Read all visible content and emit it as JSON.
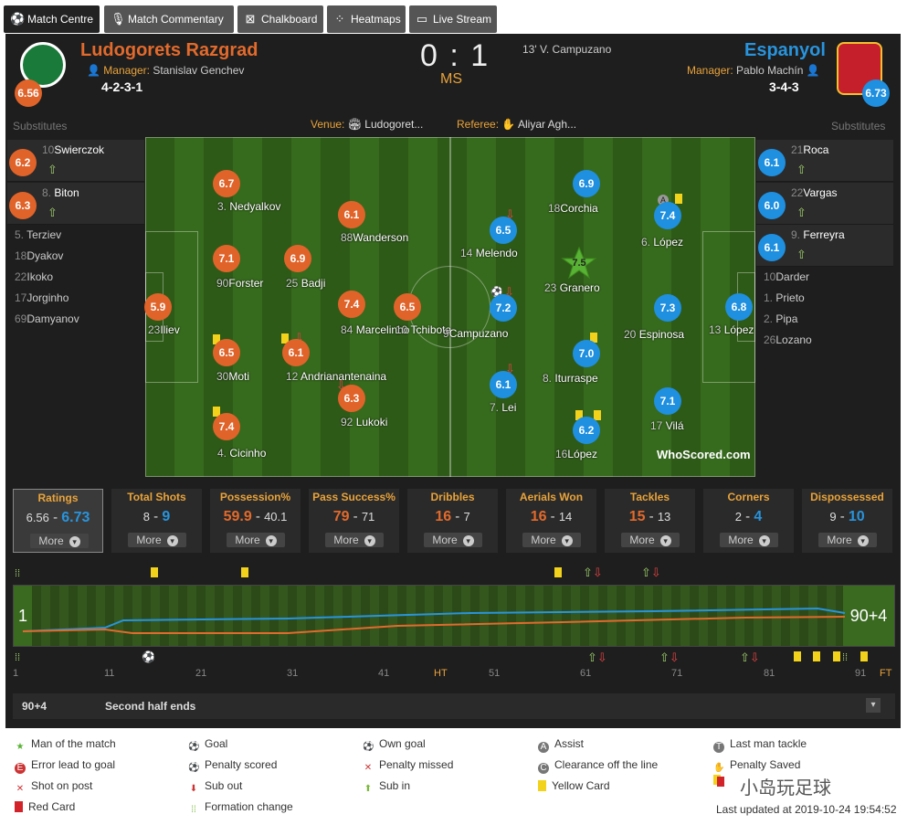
{
  "tabs": [
    {
      "label": "Match Centre",
      "icon": "soccer-ball-icon"
    },
    {
      "label": "Match Commentary",
      "icon": "microphone-icon"
    },
    {
      "label": "Chalkboard",
      "icon": "chalkboard-icon"
    },
    {
      "label": "Heatmaps",
      "icon": "heatmap-icon"
    },
    {
      "label": "Live Stream",
      "icon": "monitor-icon"
    }
  ],
  "home": {
    "name": "Ludogorets Razgrad",
    "manager_label": "Manager:",
    "manager": "Stanislav Genchev",
    "formation": "4-2-3-1",
    "rating": "6.56",
    "color": "#e26a2c"
  },
  "away": {
    "name": "Espanyol",
    "manager_label": "Manager:",
    "manager": "Pablo Machín",
    "formation": "3-4-3",
    "rating": "6.73",
    "color": "#2894dd"
  },
  "score": {
    "home": "0",
    "sep": ":",
    "away": "1",
    "status": "MS"
  },
  "goal_event": "13' V. Campuzano",
  "venue_label": "Venue:",
  "venue": "Ludogoret...",
  "referee_label": "Referee:",
  "referee": "Aliyar Agh...",
  "substitutes_label": "Substitutes",
  "home_subs": [
    {
      "num": "10",
      "name": "Swierczok",
      "rating": "6.2",
      "sub_in": true
    },
    {
      "num": "8.",
      "name": "Biton",
      "rating": "6.3",
      "sub_in": true
    },
    {
      "num": "5.",
      "name": "Terziev"
    },
    {
      "num": "18",
      "name": "Dyakov"
    },
    {
      "num": "22",
      "name": "Ikoko"
    },
    {
      "num": "17",
      "name": "Jorginho"
    },
    {
      "num": "69",
      "name": "Damyanov"
    }
  ],
  "away_subs": [
    {
      "num": "21",
      "name": "Roca",
      "rating": "6.1",
      "sub_in": true
    },
    {
      "num": "22",
      "name": "Vargas",
      "rating": "6.0",
      "sub_in": true
    },
    {
      "num": "9.",
      "name": "Ferreyra",
      "rating": "6.1",
      "sub_in": true
    },
    {
      "num": "10",
      "name": "Darder"
    },
    {
      "num": "1.",
      "name": "Prieto"
    },
    {
      "num": "2.",
      "name": "Pipa"
    },
    {
      "num": "26",
      "name": "Lozano"
    }
  ],
  "home_players": [
    {
      "num": "23",
      "name": "Iliev",
      "rating": "5.9"
    },
    {
      "num": "3.",
      "name": "Nedyalkov",
      "rating": "6.7"
    },
    {
      "num": "90",
      "name": "Forster",
      "rating": "7.1"
    },
    {
      "num": "30",
      "name": "Moti",
      "rating": "6.5"
    },
    {
      "num": "4.",
      "name": "Cicinho",
      "rating": "7.4"
    },
    {
      "num": "25",
      "name": "Badji",
      "rating": "6.9"
    },
    {
      "num": "12",
      "name": "Andrianantenaina",
      "rating": "6.1"
    },
    {
      "num": "88",
      "name": "Wanderson",
      "rating": "6.1"
    },
    {
      "num": "84",
      "name": "Marcelinho",
      "rating": "7.4"
    },
    {
      "num": "92",
      "name": "Lukoki",
      "rating": "6.3"
    },
    {
      "num": "10",
      "name": "Tchibota",
      "rating": "6.5"
    }
  ],
  "away_players": [
    {
      "num": "13",
      "name": "López",
      "rating": "6.8"
    },
    {
      "num": "6.",
      "name": "López",
      "rating": "7.4"
    },
    {
      "num": "20",
      "name": "Espinosa",
      "rating": "7.3"
    },
    {
      "num": "17",
      "name": "Vilá",
      "rating": "7.1"
    },
    {
      "num": "18",
      "name": "Corchia",
      "rating": "6.9"
    },
    {
      "num": "23",
      "name": "Granero",
      "rating": "7.5",
      "motm": true
    },
    {
      "num": "8.",
      "name": "Iturraspe",
      "rating": "7.0"
    },
    {
      "num": "16",
      "name": "López",
      "rating": "6.2"
    },
    {
      "num": "14",
      "name": "Melendo",
      "rating": "6.5"
    },
    {
      "num": "9",
      "name": "Campuzano",
      "rating": "7.2"
    },
    {
      "num": "7.",
      "name": "Lei",
      "rating": "6.1"
    }
  ],
  "assist_marker": "A",
  "watermark": "WhoScored.com",
  "stats": [
    {
      "title": "Ratings",
      "home": "6.56",
      "away": "6.73",
      "more": "More"
    },
    {
      "title": "Total Shots",
      "home": "8",
      "away": "9",
      "more": "More"
    },
    {
      "title": "Possession%",
      "home": "59.9",
      "away": "40.1",
      "more": "More"
    },
    {
      "title": "Pass Success%",
      "home": "79",
      "away": "71",
      "more": "More"
    },
    {
      "title": "Dribbles",
      "home": "16",
      "away": "7",
      "more": "More"
    },
    {
      "title": "Aerials Won",
      "home": "16",
      "away": "14",
      "more": "More"
    },
    {
      "title": "Tackles",
      "home": "15",
      "away": "13",
      "more": "More"
    },
    {
      "title": "Corners",
      "home": "2",
      "away": "4",
      "more": "More"
    },
    {
      "title": "Dispossessed",
      "home": "9",
      "away": "10",
      "more": "More"
    }
  ],
  "timeline": {
    "start_label": "1",
    "end_label": "90+4",
    "ticks": [
      "1",
      "11",
      "21",
      "31",
      "41",
      "HT",
      "51",
      "61",
      "71",
      "81",
      "91",
      "FT"
    ]
  },
  "event_bar": {
    "minute": "90+4",
    "text": "Second half ends"
  },
  "legend": [
    {
      "label": "Man of the match",
      "icon": "star-icon"
    },
    {
      "label": "Goal",
      "icon": "goal-icon"
    },
    {
      "label": "Own goal",
      "icon": "own-goal-icon"
    },
    {
      "label": "Assist",
      "icon": "assist-icon"
    },
    {
      "label": "Last man tackle",
      "icon": "last-man-tackle-icon"
    },
    {
      "label": "Error lead to goal",
      "icon": "error-icon"
    },
    {
      "label": "Penalty scored",
      "icon": "penalty-scored-icon"
    },
    {
      "label": "Penalty missed",
      "icon": "penalty-missed-icon"
    },
    {
      "label": "Clearance off the line",
      "icon": "clearance-icon"
    },
    {
      "label": "Penalty Saved",
      "icon": "penalty-saved-icon"
    },
    {
      "label": "Shot on post",
      "icon": "shot-on-post-icon"
    },
    {
      "label": "Sub out",
      "icon": "sub-out-icon"
    },
    {
      "label": "Sub in",
      "icon": "sub-in-icon"
    },
    {
      "label": "Yellow Card",
      "icon": "yellow-card-icon"
    },
    {
      "label": "Red Card",
      "icon": "red-card-icon"
    },
    {
      "label": "Formation change",
      "icon": "formation-change-icon"
    }
  ],
  "last_updated": "Last updated at 2019-10-24 19:54:52",
  "overlay_watermark": "小岛玩足球"
}
